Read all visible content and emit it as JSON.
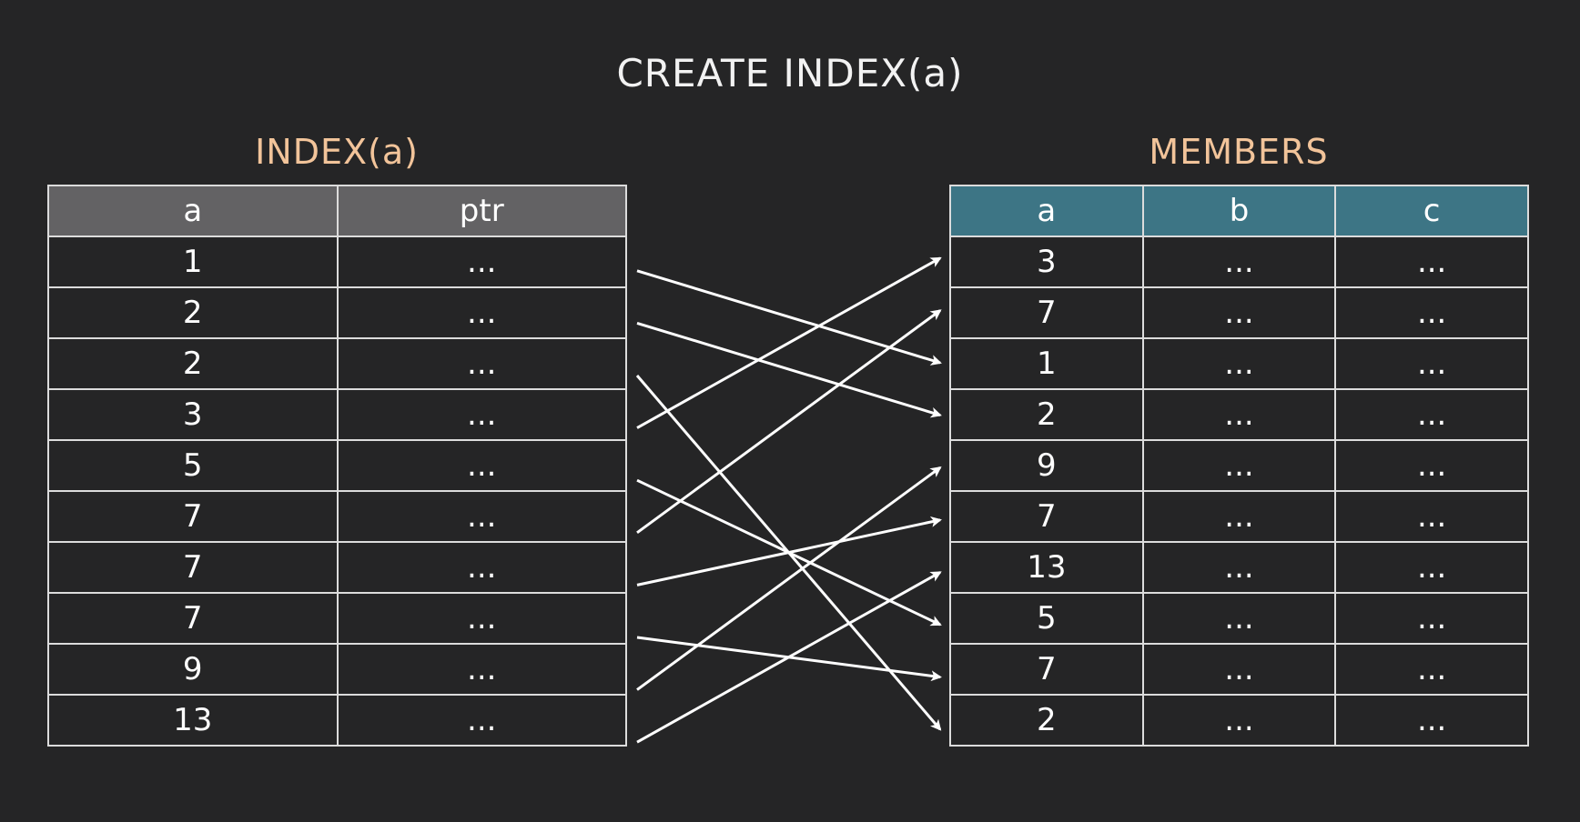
{
  "title": "CREATE INDEX(a)",
  "index_table": {
    "label": "INDEX(a)",
    "columns": [
      "a",
      "ptr"
    ],
    "rows": [
      {
        "a": "1",
        "ptr": "..."
      },
      {
        "a": "2",
        "ptr": "..."
      },
      {
        "a": "2",
        "ptr": "..."
      },
      {
        "a": "3",
        "ptr": "..."
      },
      {
        "a": "5",
        "ptr": "..."
      },
      {
        "a": "7",
        "ptr": "..."
      },
      {
        "a": "7",
        "ptr": "..."
      },
      {
        "a": "7",
        "ptr": "..."
      },
      {
        "a": "9",
        "ptr": "..."
      },
      {
        "a": "13",
        "ptr": "..."
      }
    ]
  },
  "members_table": {
    "label": "MEMBERS",
    "columns": [
      "a",
      "b",
      "c"
    ],
    "rows": [
      {
        "a": "3",
        "b": "...",
        "c": "..."
      },
      {
        "a": "7",
        "b": "...",
        "c": "..."
      },
      {
        "a": "1",
        "b": "...",
        "c": "..."
      },
      {
        "a": "2",
        "b": "...",
        "c": "..."
      },
      {
        "a": "9",
        "b": "...",
        "c": "..."
      },
      {
        "a": "7",
        "b": "...",
        "c": "..."
      },
      {
        "a": "13",
        "b": "...",
        "c": "..."
      },
      {
        "a": "5",
        "b": "...",
        "c": "..."
      },
      {
        "a": "7",
        "b": "...",
        "c": "..."
      },
      {
        "a": "2",
        "b": "...",
        "c": "..."
      }
    ]
  },
  "pointers": [
    {
      "from": 0,
      "to": 2
    },
    {
      "from": 1,
      "to": 3
    },
    {
      "from": 2,
      "to": 9
    },
    {
      "from": 3,
      "to": 0
    },
    {
      "from": 4,
      "to": 7
    },
    {
      "from": 5,
      "to": 1
    },
    {
      "from": 6,
      "to": 5
    },
    {
      "from": 7,
      "to": 8
    },
    {
      "from": 8,
      "to": 4
    },
    {
      "from": 9,
      "to": 6
    }
  ],
  "colors": {
    "background": "#252526",
    "label": "#f2c49a",
    "index_header": "#636264",
    "members_header": "#3d7585",
    "arrow": "#ffffff"
  }
}
